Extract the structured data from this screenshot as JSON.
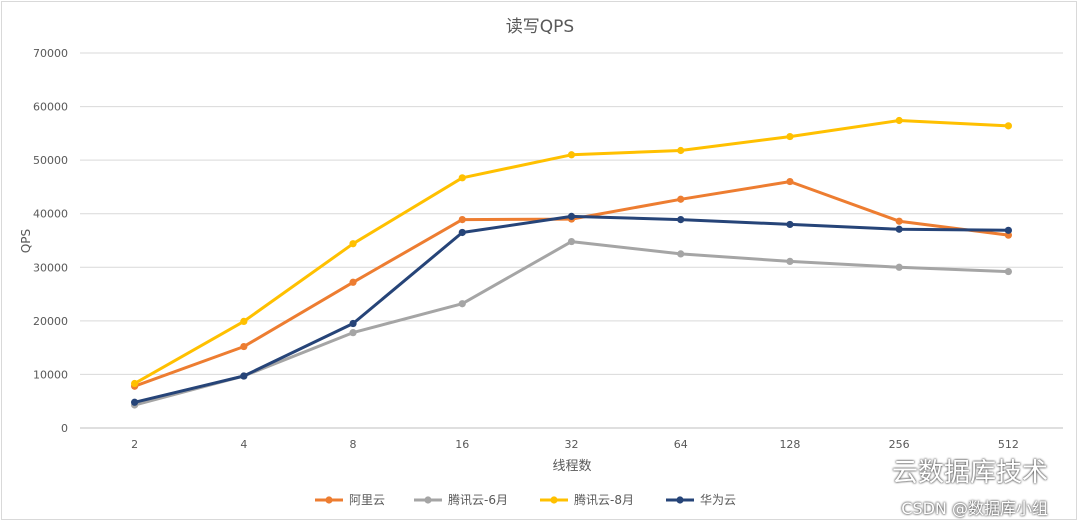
{
  "chart_data": {
    "type": "line",
    "title": "读写QPS",
    "xlabel": "线程数",
    "ylabel": "QPS",
    "categories": [
      "2",
      "4",
      "8",
      "16",
      "32",
      "64",
      "128",
      "256",
      "512"
    ],
    "ylim": [
      0,
      70000
    ],
    "yticks": [
      0,
      10000,
      20000,
      30000,
      40000,
      50000,
      60000,
      70000
    ],
    "grid": true,
    "legend_position": "bottom",
    "series": [
      {
        "name": "阿里云",
        "color": "#ED7D31",
        "values": [
          7800,
          15200,
          27200,
          38900,
          39000,
          42700,
          46000,
          38600,
          36000
        ]
      },
      {
        "name": "腾讯云-6月",
        "color": "#A5A5A5",
        "values": [
          4300,
          9700,
          17800,
          23200,
          34800,
          32500,
          31100,
          30000,
          29200
        ]
      },
      {
        "name": "腾讯云-8月",
        "color": "#FFC000",
        "values": [
          8300,
          19900,
          34400,
          46700,
          51000,
          51800,
          54400,
          57400,
          56400
        ]
      },
      {
        "name": "华为云",
        "color": "#264478",
        "values": [
          4800,
          9700,
          19500,
          36500,
          39500,
          38900,
          38000,
          37100,
          36900
        ]
      }
    ]
  },
  "watermark": {
    "line1": "云数据库技术",
    "line2": "CSDN @数据库小组"
  }
}
